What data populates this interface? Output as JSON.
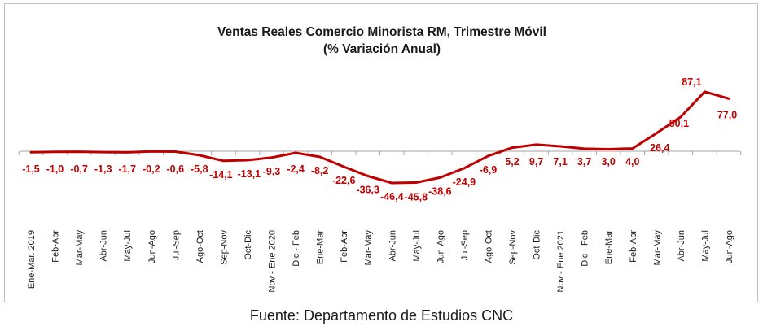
{
  "source_note": "Fuente: Departamento de Estudios CNC",
  "chart_data": {
    "type": "line",
    "title": "Ventas Reales Comercio Minorista RM, Trimestre Móvil",
    "subtitle": "(% Variación Anual)",
    "xlabel": "",
    "ylabel": "",
    "grid": false,
    "legend": "none",
    "line_color": "#C00000",
    "label_color": "#C00000",
    "categories": [
      "Ene-Mar. 2019",
      "Feb-Abr",
      "Mar-May",
      "Abr-Jun",
      "May-Jul",
      "Jun-Ago",
      "Jul-Sep",
      "Ago-Oct",
      "Sep-Nov",
      "Oct-Dic",
      "Nov - Ene 2020",
      "Dic - Feb",
      "Ene-Mar",
      "Feb-Abr",
      "Mar-May",
      "Abr-Jun",
      "May-Jul",
      "Jun-Ago",
      "Jul-Sep",
      "Ago-Oct",
      "Sep-Nov",
      "Oct-Dic",
      "Nov - Ene 2021",
      "Dic - Feb",
      "Ene-Mar",
      "Feb-Abr",
      "Mar-May",
      "Abr-Jun",
      "May-Jul",
      "Jun-Ago"
    ],
    "values": [
      -1.5,
      -1.0,
      -0.7,
      -1.3,
      -1.7,
      -0.2,
      -0.6,
      -5.8,
      -14.1,
      -13.1,
      -9.3,
      -2.4,
      -8.2,
      -22.6,
      -36.3,
      -46.4,
      -45.8,
      -38.6,
      -24.9,
      -6.9,
      5.2,
      9.7,
      7.1,
      3.7,
      3.0,
      4.0,
      26.4,
      50.1,
      87.1,
      77.0
    ],
    "data_labels": [
      "-1,5",
      "-1,0",
      "-0,7",
      "-1,3",
      "-1,7",
      "-0,2",
      "-0,6",
      "-5,8",
      "-14,1",
      "-13,1",
      "-9,3",
      "-2,4",
      "-8,2",
      "-22,6",
      "-36,3",
      "-46,4",
      "-45,8",
      "-38,6",
      "-24,9",
      "-6,9",
      "5,2",
      "9,7",
      "7,1",
      "3,7",
      "3,0",
      "4,0",
      "26,4",
      "50,1",
      "87,1",
      "77,0"
    ],
    "ylim": [
      -60,
      100
    ]
  }
}
